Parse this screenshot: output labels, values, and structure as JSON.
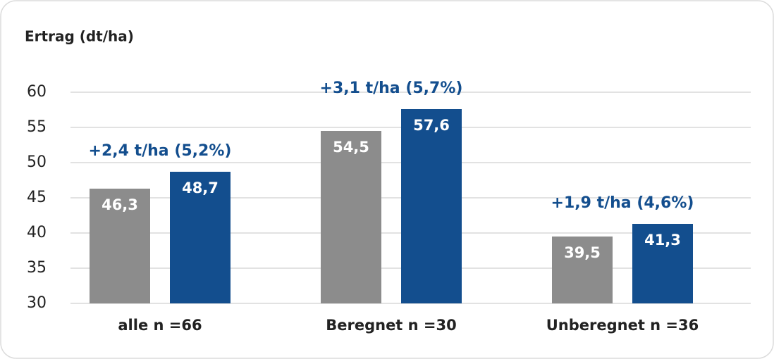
{
  "chart_data": {
    "type": "bar",
    "y_label": "Ertrag (dt/ha)",
    "categories": [
      "alle n =66",
      "Beregnet n =30",
      "Unberegnet n =36"
    ],
    "series": [
      {
        "color": "#8c8c8c",
        "values": [
          46.3,
          54.5,
          39.5
        ],
        "value_labels": [
          "46,3",
          "54,5",
          "39,5"
        ]
      },
      {
        "color": "#134e8e",
        "values": [
          48.7,
          57.6,
          41.3
        ],
        "value_labels": [
          "48,7",
          "57,6",
          "41,3"
        ]
      }
    ],
    "annotations": [
      "+2,4 t/ha (5,2%)",
      "+3,1 t/ha (5,7%)",
      "+1,9 t/ha (4,6%)"
    ],
    "annotation_color": "#134e8e",
    "ylim": [
      30,
      60
    ],
    "yticks": [
      30,
      35,
      40,
      45,
      50,
      55,
      60
    ],
    "grid": true
  }
}
